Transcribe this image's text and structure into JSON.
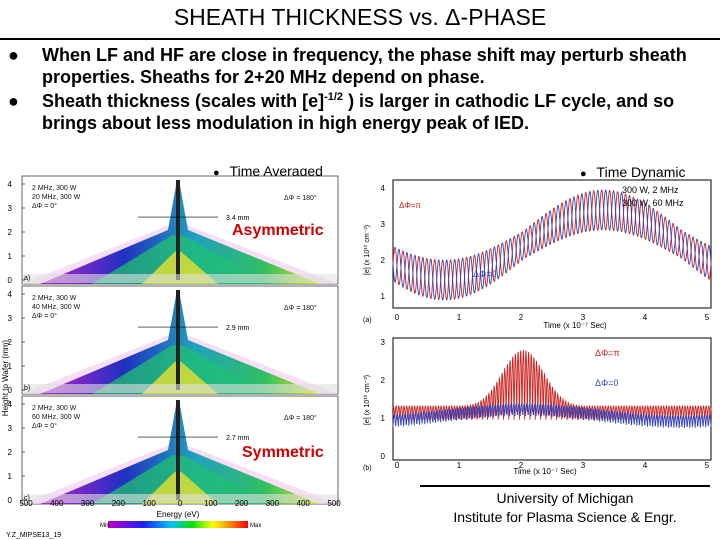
{
  "slide": {
    "title": "SHEATH THICKNESS vs. Δ-PHASE",
    "bullets": [
      {
        "text": "When LF and HF are close in frequency, the phase shift may perturb sheath properties. Sheaths for 2+20 MHz depend on phase."
      },
      {
        "pre": "Sheath thickness (scales with [e]",
        "sup": "-1/2",
        "post": " ) is larger in cathodic LF cycle, and so brings about less modulation in high energy peak of IED."
      }
    ],
    "time_averaged_label": "Time Averaged",
    "time_dynamic_label": "Time Dynamic",
    "asymmetric_label": "Asymmetric",
    "symmetric_label": "Symmetric",
    "dynamic_legend": [
      "300 W, 2 MHz",
      "300 W, 60 MHz"
    ],
    "credit": "Y.Z_MIPSE13_19",
    "footer": [
      "University of Michigan",
      "Institute for Plasma Science & Engr."
    ]
  },
  "left_panels": {
    "ylabel": "Height to Wafer (mm)",
    "xlabel": "Energy (eV)",
    "yticks": [
      "0",
      "1",
      "2",
      "3",
      "4"
    ],
    "xticks": [
      "500",
      "400",
      "300",
      "200",
      "100",
      "0",
      "100",
      "200",
      "300",
      "400",
      "500"
    ],
    "colorbar": {
      "min": "Min",
      "max": "Max"
    },
    "panels": [
      {
        "tag": "a)",
        "params": [
          "2 MHz, 300 W",
          "20 MHz, 300 W",
          "ΔΦ = 0°"
        ],
        "alt": "ΔΦ = 180°",
        "thickness": "3.4 mm"
      },
      {
        "tag": "b)",
        "params": [
          "2 MHz, 300 W",
          "40 MHz, 300 W",
          "ΔΦ = 0°"
        ],
        "alt": "ΔΦ = 180°",
        "thickness": "2.9 mm"
      },
      {
        "tag": "c)",
        "params": [
          "2 MHz, 300 W",
          "60 MHz, 300 W",
          "ΔΦ = 0°"
        ],
        "alt": "ΔΦ = 180°",
        "thickness": "2.7 mm"
      }
    ]
  },
  "right_panels": {
    "xlabel": "Time (x 10⁻⁷ Sec)",
    "xticks": [
      "0",
      "1",
      "2",
      "3",
      "4",
      "5"
    ],
    "top": {
      "tag": "(a)",
      "ylabel": "[e] (x 10¹⁰ cm⁻³)",
      "yticks": [
        "1",
        "2",
        "3",
        "4"
      ],
      "labels": [
        "ΔΦ=π",
        "ΔΦ=0"
      ]
    },
    "bottom": {
      "tag": "(b)",
      "ylabel": "[e] (x 10¹⁰ cm⁻³)",
      "yticks": [
        "0",
        "1",
        "2",
        "3"
      ],
      "labels": [
        "ΔΦ=π",
        "ΔΦ=0"
      ]
    },
    "colors": {
      "phase_pi": "#cc2222",
      "phase_0": "#3344bb"
    }
  }
}
